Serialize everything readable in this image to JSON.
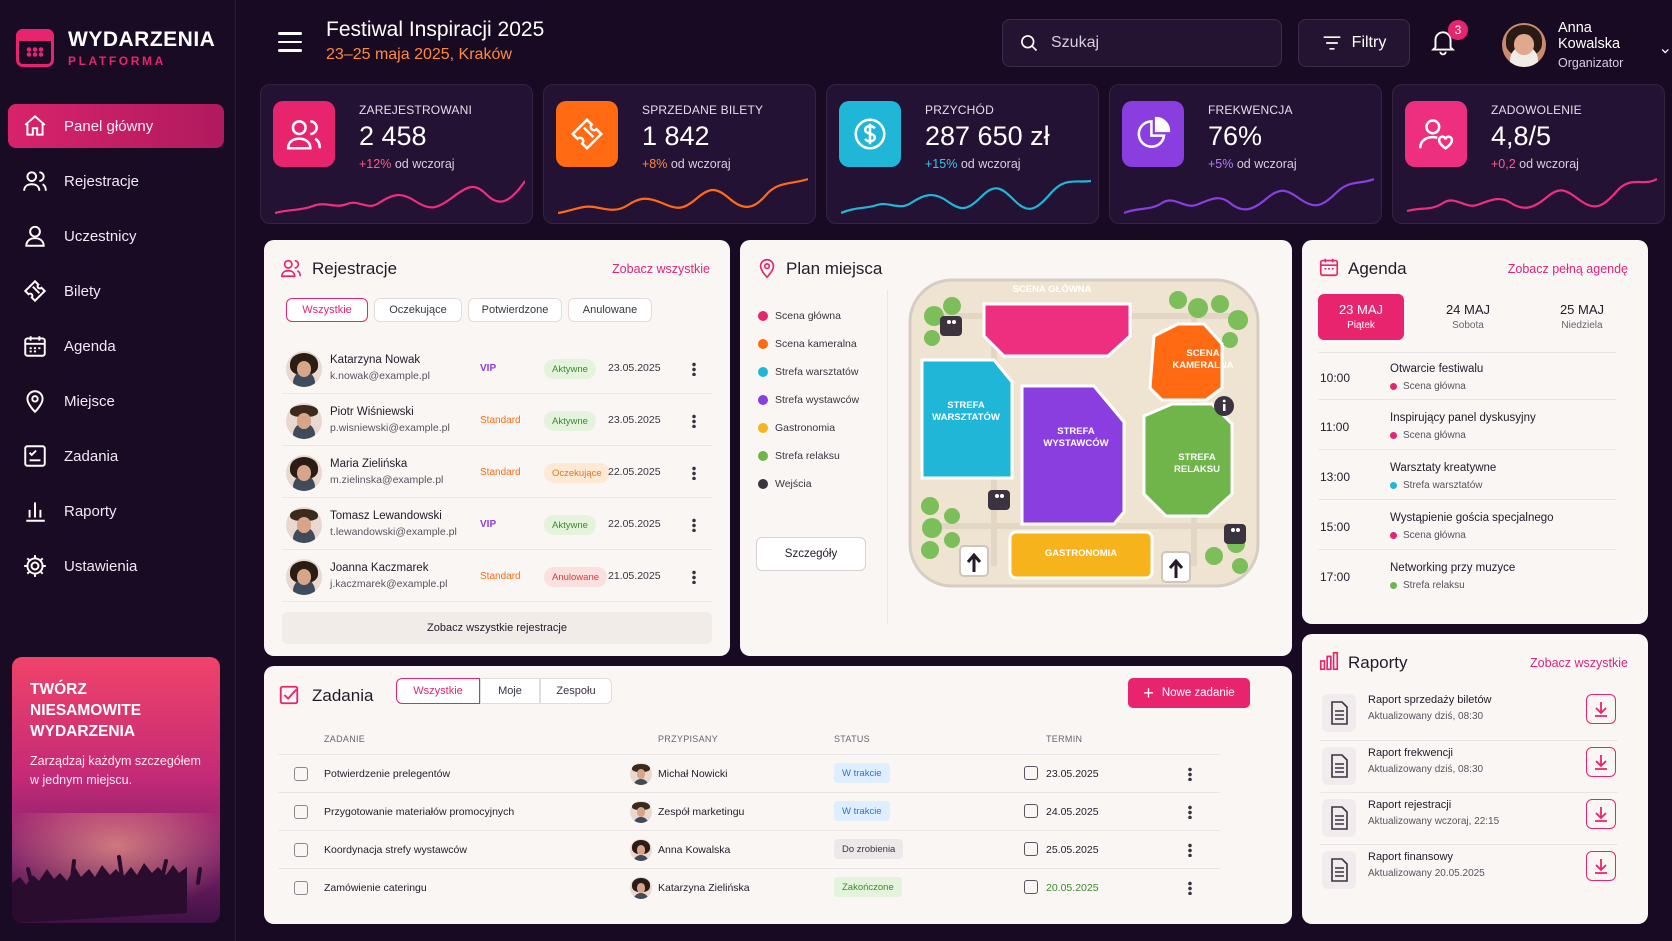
{
  "brand": {
    "title": "WYDARZENIA",
    "subtitle": "PLATFORMA"
  },
  "nav": [
    {
      "label": "Panel główny",
      "icon": "home-icon",
      "active": true
    },
    {
      "label": "Rejestracje",
      "icon": "users-icon"
    },
    {
      "label": "Uczestnicy",
      "icon": "user-icon"
    },
    {
      "label": "Bilety",
      "icon": "ticket-icon"
    },
    {
      "label": "Agenda",
      "icon": "calendar-icon"
    },
    {
      "label": "Miejsce",
      "icon": "location-pin-icon"
    },
    {
      "label": "Zadania",
      "icon": "task-list-icon"
    },
    {
      "label": "Raporty",
      "icon": "bar-chart-icon"
    },
    {
      "label": "Ustawienia",
      "icon": "gear-icon"
    }
  ],
  "promo": {
    "title": "TWÓRZ NIESAMOWITE WYDARZENIA",
    "text": "Zarządzaj każdym szczegółem w jednym miejscu."
  },
  "header": {
    "title": "Festiwal Inspiracji 2025",
    "subtitle": "23–25 maja 2025, Kraków",
    "search_placeholder": "Szukaj",
    "filters_label": "Filtry",
    "notifications": "3",
    "user_name": "Anna Kowalska",
    "user_role": "Organizator"
  },
  "stats": [
    {
      "label": "ZAREJESTROWANI",
      "value": "2 458",
      "change": "+12%",
      "suffix": "od wczoraj",
      "color": "#e8246e",
      "change_color": "#ff5a8a"
    },
    {
      "label": "SPRZEDANE BILETY",
      "value": "1 842",
      "change": "+8%",
      "suffix": "od wczoraj",
      "color": "#ff6a13",
      "change_color": "#ff8a3d"
    },
    {
      "label": "PRZYCHÓD",
      "value": "287 650 zł",
      "change": "+15%",
      "suffix": "od wczoraj",
      "color": "#1fb6d8",
      "change_color": "#35c9ea"
    },
    {
      "label": "FREKWENCJA",
      "value": "76%",
      "change": "+5%",
      "suffix": "od wczoraj",
      "color": "#8a3ee0",
      "change_color": "#b57cf5"
    },
    {
      "label": "ZADOWOLENIE",
      "value": "4,8/5",
      "change": "+0,2",
      "suffix": "od wczoraj",
      "color": "#ee2f80",
      "change_color": "#ff5a8a"
    }
  ],
  "registrations": {
    "title": "Rejestracje",
    "see_all": "Zobacz wszystkie",
    "tabs": [
      "Wszystkie",
      "Oczekujące",
      "Potwierdzone",
      "Anulowane"
    ],
    "rows": [
      {
        "name": "Katarzyna Nowak",
        "email": "k.nowak@example.pl",
        "type": "VIP",
        "status": "Aktywne",
        "date": "23.05.2025"
      },
      {
        "name": "Piotr Wiśniewski",
        "email": "p.wisniewski@example.pl",
        "type": "Standard",
        "status": "Aktywne",
        "date": "23.05.2025"
      },
      {
        "name": "Maria Zielińska",
        "email": "m.zielinska@example.pl",
        "type": "Standard",
        "status": "Oczekujące",
        "date": "22.05.2025"
      },
      {
        "name": "Tomasz Lewandowski",
        "email": "t.lewandowski@example.pl",
        "type": "VIP",
        "status": "Aktywne",
        "date": "22.05.2025"
      },
      {
        "name": "Joanna Kaczmarek",
        "email": "j.kaczmarek@example.pl",
        "type": "Standard",
        "status": "Anulowane",
        "date": "21.05.2025"
      }
    ],
    "footer": "Zobacz wszystkie rejestracje"
  },
  "venue": {
    "title": "Plan miejsca",
    "legend": [
      {
        "label": "Scena główna",
        "color": "#e8246e"
      },
      {
        "label": "Scena kameralna",
        "color": "#ff6a13"
      },
      {
        "label": "Strefa warsztatów",
        "color": "#1fb6d8"
      },
      {
        "label": "Strefa wystawców",
        "color": "#8a3ee0"
      },
      {
        "label": "Gastronomia",
        "color": "#f6b31c"
      },
      {
        "label": "Strefa relaksu",
        "color": "#6fb54a"
      },
      {
        "label": "Wejścia",
        "color": "#3b3340"
      }
    ],
    "details_button": "Szczegóły",
    "zones": {
      "main_stage": "SCENA GŁÓWNA",
      "chamber_stage": "SCENA KAMERALNA",
      "workshops": "STREFA WARSZTATÓW",
      "exhibitors": "STREFA WYSTAWCÓW",
      "relax": "STREFA RELAKSU",
      "gastronomy": "GASTRONOMIA"
    }
  },
  "agenda": {
    "title": "Agenda",
    "see_all": "Zobacz pełną agendę",
    "days": [
      {
        "date": "23 MAJ",
        "weekday": "Piątek",
        "active": true
      },
      {
        "date": "24 MAJ",
        "weekday": "Sobota"
      },
      {
        "date": "25 MAJ",
        "weekday": "Niedziela"
      }
    ],
    "items": [
      {
        "time": "10:00",
        "title": "Otwarcie festiwalu",
        "place": "Scena główna",
        "color": "#e8246e"
      },
      {
        "time": "11:00",
        "title": "Inspirujący panel dyskusyjny",
        "place": "Scena główna",
        "color": "#e8246e"
      },
      {
        "time": "13:00",
        "title": "Warsztaty kreatywne",
        "place": "Strefa warsztatów",
        "color": "#1fb6d8"
      },
      {
        "time": "15:00",
        "title": "Wystąpienie gościa specjalnego",
        "place": "Scena główna",
        "color": "#e8246e"
      },
      {
        "time": "17:00",
        "title": "Networking przy muzyce",
        "place": "Strefa relaksu",
        "color": "#6fb54a"
      }
    ]
  },
  "tasks": {
    "title": "Zadania",
    "tabs": [
      "Wszystkie",
      "Moje",
      "Zespołu"
    ],
    "new_button": "Nowe zadanie",
    "columns": [
      "ZADANIE",
      "PRZYPISANY",
      "STATUS",
      "TERMIN"
    ],
    "rows": [
      {
        "task": "Potwierdzenie prelegentów",
        "assignee": "Michał Nowicki",
        "status": "W trakcie",
        "due": "23.05.2025"
      },
      {
        "task": "Przygotowanie materiałów promocyjnych",
        "assignee": "Zespół marketingu",
        "status": "W trakcie",
        "due": "24.05.2025"
      },
      {
        "task": "Koordynacja strefy wystawców",
        "assignee": "Anna Kowalska",
        "status": "Do zrobienia",
        "due": "25.05.2025"
      },
      {
        "task": "Zamówienie cateringu",
        "assignee": "Katarzyna Zielińska",
        "status": "Zakończone",
        "due": "20.05.2025"
      }
    ]
  },
  "reports": {
    "title": "Raporty",
    "see_all": "Zobacz wszystkie",
    "items": [
      {
        "title": "Raport sprzedaży biletów",
        "updated": "Aktualizowany dziś, 08:30"
      },
      {
        "title": "Raport frekwencji",
        "updated": "Aktualizowany dziś, 08:30"
      },
      {
        "title": "Raport rejestracji",
        "updated": "Aktualizowany wczoraj, 22:15"
      },
      {
        "title": "Raport finansowy",
        "updated": "Aktualizowany 20.05.2025"
      }
    ]
  }
}
